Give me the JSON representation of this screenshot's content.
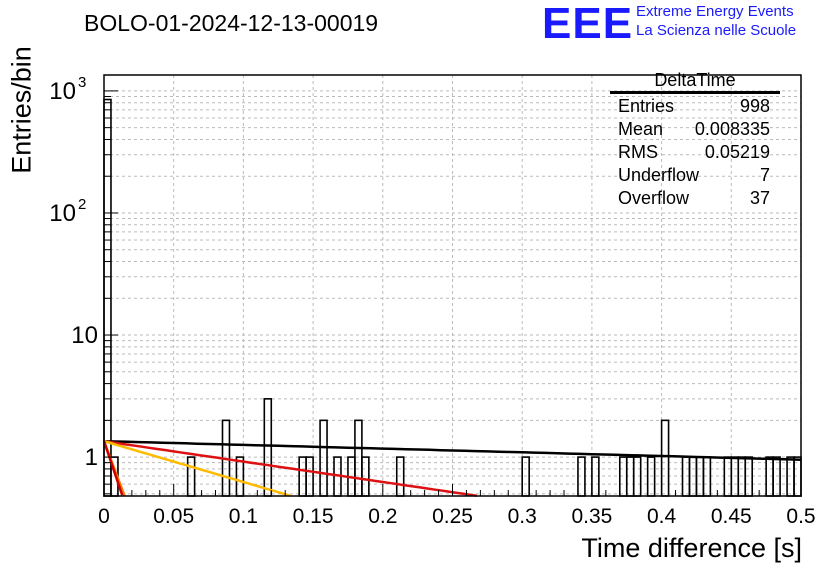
{
  "header": {
    "title": "BOLO-01-2024-12-13-00019",
    "logo_text": "EEE",
    "logo_line1": "Extreme Energy Events",
    "logo_line2": "La Scienza nelle Scuole"
  },
  "stats_box": {
    "title": "DeltaTime",
    "rows": [
      {
        "label": "Entries",
        "value": "998"
      },
      {
        "label": "Mean",
        "value": "0.008335"
      },
      {
        "label": "RMS",
        "value": "0.05219"
      },
      {
        "label": "Underflow",
        "value": "7"
      },
      {
        "label": "Overflow",
        "value": "37"
      }
    ]
  },
  "chart_data": {
    "type": "histogram",
    "xlabel": "Time difference [s]",
    "ylabel": "Entries/bin",
    "xlim": [
      0,
      0.5
    ],
    "ylim": [
      0.48,
      1350
    ],
    "yscale": "log",
    "grid": true,
    "bin_width": 0.005,
    "x_ticks": [
      "0",
      "0.05",
      "0.1",
      "0.15",
      "0.2",
      "0.25",
      "0.3",
      "0.35",
      "0.4",
      "0.45",
      "0.5"
    ],
    "y_ticks": [
      {
        "value": 1,
        "label": "1"
      },
      {
        "value": 10,
        "label": "10"
      },
      {
        "value": 100,
        "label": "10",
        "exp": "2"
      },
      {
        "value": 1000,
        "label": "10",
        "exp": "3"
      }
    ],
    "bins": [
      {
        "x": 0.0,
        "y": 850
      },
      {
        "x": 0.005,
        "y": 1
      },
      {
        "x": 0.06,
        "y": 1
      },
      {
        "x": 0.085,
        "y": 2
      },
      {
        "x": 0.095,
        "y": 1
      },
      {
        "x": 0.115,
        "y": 3
      },
      {
        "x": 0.14,
        "y": 1
      },
      {
        "x": 0.145,
        "y": 1
      },
      {
        "x": 0.155,
        "y": 2
      },
      {
        "x": 0.165,
        "y": 1
      },
      {
        "x": 0.175,
        "y": 1
      },
      {
        "x": 0.18,
        "y": 2
      },
      {
        "x": 0.185,
        "y": 1
      },
      {
        "x": 0.21,
        "y": 1
      },
      {
        "x": 0.3,
        "y": 1
      },
      {
        "x": 0.34,
        "y": 1
      },
      {
        "x": 0.35,
        "y": 1
      },
      {
        "x": 0.37,
        "y": 1
      },
      {
        "x": 0.375,
        "y": 1
      },
      {
        "x": 0.38,
        "y": 1
      },
      {
        "x": 0.39,
        "y": 1
      },
      {
        "x": 0.4,
        "y": 2
      },
      {
        "x": 0.415,
        "y": 1
      },
      {
        "x": 0.42,
        "y": 1
      },
      {
        "x": 0.425,
        "y": 1
      },
      {
        "x": 0.43,
        "y": 1
      },
      {
        "x": 0.445,
        "y": 1
      },
      {
        "x": 0.45,
        "y": 1
      },
      {
        "x": 0.455,
        "y": 1
      },
      {
        "x": 0.46,
        "y": 1
      },
      {
        "x": 0.475,
        "y": 1
      },
      {
        "x": 0.48,
        "y": 1
      },
      {
        "x": 0.49,
        "y": 1
      },
      {
        "x": 0.495,
        "y": 1
      }
    ],
    "fits": [
      {
        "color": "#000000",
        "y0": 1.35,
        "slope_per_s": -0.7,
        "x_range": [
          0,
          0.5
        ]
      },
      {
        "color": "#dd1111",
        "y0": 1.35,
        "slope_per_s": -3.85,
        "x_range": [
          0,
          0.272
        ]
      },
      {
        "color": "#ffbb00",
        "y0": 1.35,
        "slope_per_s": -7.7,
        "x_range": [
          0,
          0.136
        ]
      },
      {
        "color": "#ff7700",
        "y0": 1.35,
        "slope_per_s": -70.0,
        "x_range": [
          0,
          0.016
        ]
      },
      {
        "color": "#cc0000",
        "y0": 1.35,
        "slope_per_s": -78.0,
        "x_range": [
          0,
          0.014
        ]
      }
    ]
  }
}
